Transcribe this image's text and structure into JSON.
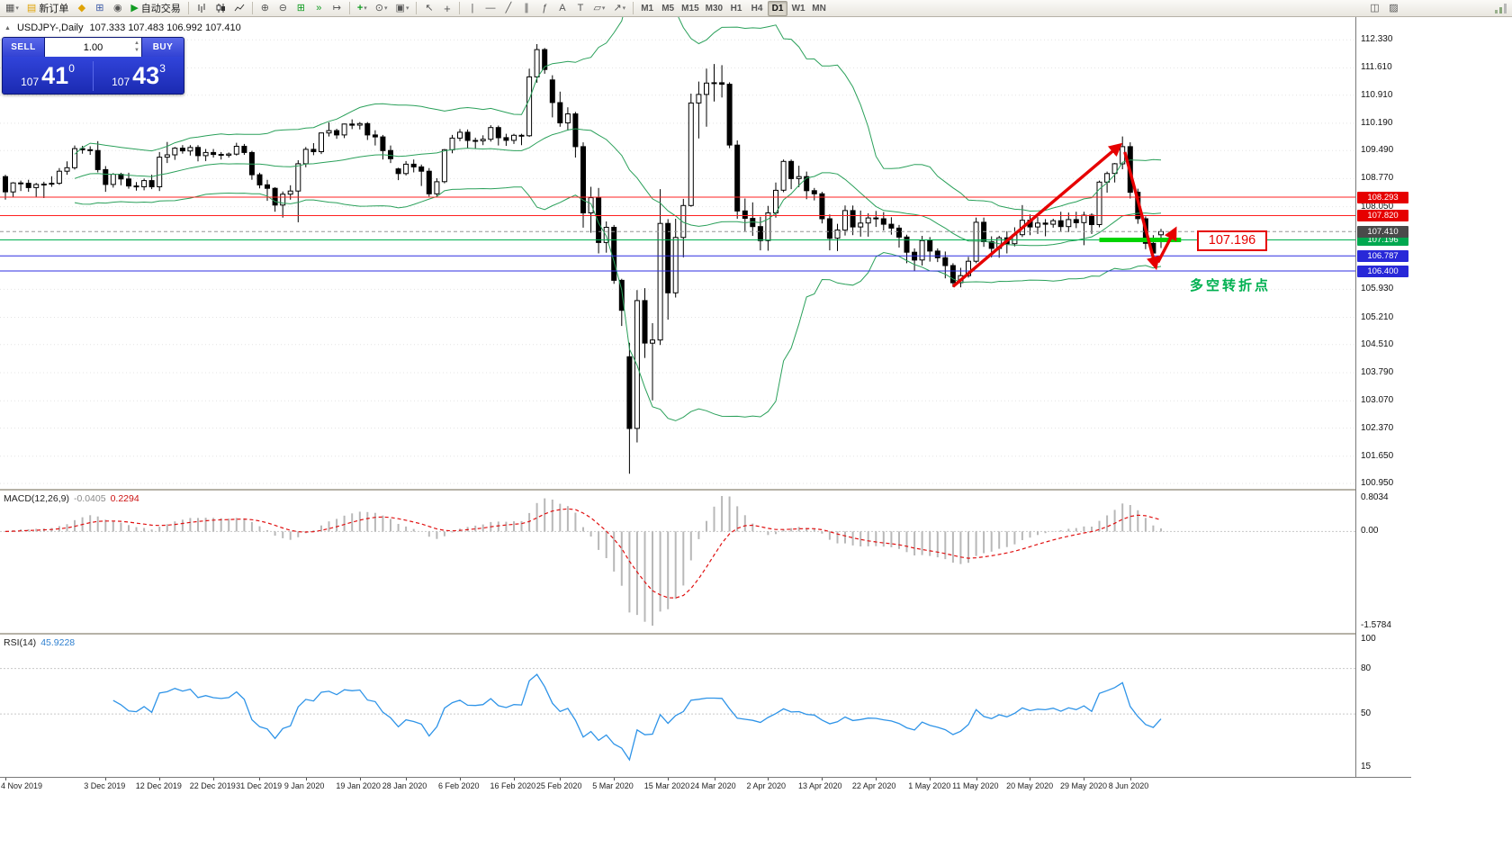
{
  "toolbar": {
    "new_order_label": "新订单",
    "auto_trading_label": "自动交易",
    "timeframes": [
      "M1",
      "M5",
      "M15",
      "M30",
      "H1",
      "H4",
      "D1",
      "W1",
      "MN"
    ],
    "active_timeframe": "D1"
  },
  "icons": {
    "new_chart": "▦",
    "dropdown": "▾",
    "order_form": "▤",
    "metaeditor": "◆",
    "charts_grid": "⊞",
    "alerts": "◉",
    "play": "▶",
    "zoom_in": "⊕",
    "zoom_out": "⊖",
    "tile_windows": "⊞",
    "auto_scroll": "»",
    "chart_shift": "↦",
    "indicators_plus": "+",
    "clock": "⊙",
    "template": "▣",
    "cursor": "↖",
    "crosshair": "+",
    "hline": "―",
    "vline": "|",
    "trendline": "╱",
    "channel": "∥",
    "fibonacci": "ƒ",
    "text_tool": "A",
    "label_tool": "T",
    "shapes": "▱",
    "arrow_tool": "↗",
    "window": "◫",
    "edit": "▨",
    "collapse": "▲"
  },
  "chart": {
    "title": "USDJPY-,Daily",
    "ohlc_display": "107.333 107.483 106.992 107.410"
  },
  "trade_panel": {
    "sell_label": "SELL",
    "buy_label": "BUY",
    "volume": "1.00",
    "sell_price_small": "107",
    "sell_price_big": "41",
    "sell_price_sup": "0",
    "buy_price_small": "107",
    "buy_price_big": "43",
    "buy_price_sup": "3"
  },
  "annotations": {
    "arrow_color": "#e60000",
    "arrows": [
      {
        "from_index": 123,
        "from_price": 106.0,
        "to_index": 144.6,
        "to_price": 109.62
      },
      {
        "from_index": 145.3,
        "from_price": 109.45,
        "to_index": 149.3,
        "to_price": 106.52
      },
      {
        "from_index": 149.6,
        "from_price": 106.62,
        "to_index": 151.8,
        "to_price": 107.45
      }
    ],
    "green_segment": {
      "price": 107.196,
      "from_index": 142,
      "to_index": 152.6,
      "color": "#00d400",
      "width": 5
    },
    "callout": {
      "text": "107.196",
      "price": 107.196
    },
    "turning_point": {
      "text": "多空转折点",
      "price": 106.08
    },
    "hlines": [
      {
        "price": 108.293,
        "label": "108.293",
        "color": "#ff2020",
        "box_color": "#e60000"
      },
      {
        "price": 107.82,
        "label": "107.820",
        "color": "#ff2020",
        "box_color": "#e60000"
      },
      {
        "price": 107.196,
        "label": "107.196",
        "color": "#00b050",
        "box_color": "#00a84f"
      },
      {
        "price": 106.787,
        "label": "106.787",
        "color": "#2e2ee0",
        "box_color": "#2828d8"
      },
      {
        "price": 106.4,
        "label": "106.400",
        "color": "#2e2ee0",
        "box_color": "#2828d8"
      }
    ],
    "current_price": {
      "price": 107.41,
      "label": "107.410",
      "box_color": "#4a4a4a"
    }
  },
  "chart_data": {
    "type": "candlestick",
    "title": "USDJPY Daily",
    "ylim": [
      100.95,
      112.91
    ],
    "colors": {
      "candle_up": "#ffffff",
      "candle_down": "#000000",
      "wick": "#000000",
      "bollinger": "#2aa05a",
      "macd_hist": "#b8b8b8",
      "macd_signal": "#e01010",
      "rsi_line": "#2f94e8"
    },
    "price_ticks": [
      "112.330",
      "111.610",
      "110.910",
      "110.190",
      "109.490",
      "108.770",
      "108.050",
      "105.930",
      "105.210",
      "104.510",
      "103.790",
      "103.070",
      "102.370",
      "101.650",
      "100.950"
    ],
    "date_ticks": [
      {
        "label": "4 Nov 2019",
        "index": 0
      },
      {
        "label": "3 Dec 2019",
        "index": 13
      },
      {
        "label": "12 Dec 2019",
        "index": 20
      },
      {
        "label": "22 Dec 2019",
        "index": 27
      },
      {
        "label": "31 Dec 2019",
        "index": 33
      },
      {
        "label": "9 Jan 2020",
        "index": 39
      },
      {
        "label": "19 Jan 2020",
        "index": 46
      },
      {
        "label": "28 Jan 2020",
        "index": 52
      },
      {
        "label": "6 Feb 2020",
        "index": 59
      },
      {
        "label": "16 Feb 2020",
        "index": 66
      },
      {
        "label": "25 Feb 2020",
        "index": 72
      },
      {
        "label": "5 Mar 2020",
        "index": 79
      },
      {
        "label": "15 Mar 2020",
        "index": 86
      },
      {
        "label": "24 Mar 2020",
        "index": 92
      },
      {
        "label": "2 Apr 2020",
        "index": 99
      },
      {
        "label": "13 Apr 2020",
        "index": 106
      },
      {
        "label": "22 Apr 2020",
        "index": 113
      },
      {
        "label": "1 May 2020",
        "index": 120
      },
      {
        "label": "11 May 2020",
        "index": 126
      },
      {
        "label": "20 May 2020",
        "index": 133
      },
      {
        "label": "29 May 2020",
        "index": 140
      },
      {
        "label": "8 Jun 2020",
        "index": 146
      }
    ],
    "indicators": {
      "bollinger": {
        "period": 20,
        "deviation": 2
      },
      "macd": {
        "name": "MACD(12,26,9)",
        "value_main": "-0.0405",
        "value_signal": "0.2294",
        "scale": [
          "0.8034",
          "0.00",
          "-1.5784"
        ]
      },
      "rsi": {
        "name": "RSI(14)",
        "value": "45.9228",
        "scale": [
          "100",
          "80",
          "50",
          "15"
        ],
        "levels": [
          80,
          50
        ]
      }
    },
    "candles": [
      [
        108.82,
        108.87,
        108.23,
        108.43
      ],
      [
        108.43,
        108.68,
        108.3,
        108.66
      ],
      [
        108.66,
        108.72,
        108.45,
        108.65
      ],
      [
        108.65,
        108.74,
        108.43,
        108.54
      ],
      [
        108.54,
        108.66,
        108.29,
        108.62
      ],
      [
        108.62,
        108.69,
        108.27,
        108.63
      ],
      [
        108.63,
        108.83,
        108.56,
        108.65
      ],
      [
        108.65,
        109.04,
        108.61,
        108.96
      ],
      [
        108.96,
        109.21,
        108.87,
        109.05
      ],
      [
        109.05,
        109.62,
        109.0,
        109.54
      ],
      [
        109.54,
        109.61,
        109.41,
        109.51
      ],
      [
        109.51,
        109.6,
        109.38,
        109.49
      ],
      [
        109.49,
        109.73,
        108.93,
        109.0
      ],
      [
        109.0,
        109.09,
        108.43,
        108.62
      ],
      [
        108.62,
        108.91,
        108.54,
        108.88
      ],
      [
        108.88,
        108.92,
        108.6,
        108.76
      ],
      [
        108.76,
        108.92,
        108.51,
        108.58
      ],
      [
        108.58,
        108.68,
        108.46,
        108.56
      ],
      [
        108.56,
        108.77,
        108.47,
        108.72
      ],
      [
        108.72,
        108.87,
        108.5,
        108.56
      ],
      [
        108.56,
        109.45,
        108.45,
        109.32
      ],
      [
        109.32,
        109.71,
        109.17,
        109.38
      ],
      [
        109.38,
        109.58,
        109.25,
        109.55
      ],
      [
        109.55,
        109.63,
        109.41,
        109.48
      ],
      [
        109.48,
        109.63,
        109.36,
        109.57
      ],
      [
        109.57,
        109.63,
        109.21,
        109.36
      ],
      [
        109.36,
        109.53,
        109.22,
        109.44
      ],
      [
        109.44,
        109.53,
        109.31,
        109.39
      ],
      [
        109.39,
        109.45,
        109.26,
        109.37
      ],
      [
        109.37,
        109.44,
        109.31,
        109.4
      ],
      [
        109.4,
        109.69,
        109.36,
        109.6
      ],
      [
        109.6,
        109.66,
        109.38,
        109.44
      ],
      [
        109.44,
        109.48,
        108.74,
        108.87
      ],
      [
        108.87,
        108.92,
        108.52,
        108.61
      ],
      [
        108.61,
        108.74,
        108.2,
        108.52
      ],
      [
        108.52,
        108.55,
        107.92,
        108.09
      ],
      [
        108.09,
        108.44,
        107.77,
        108.37
      ],
      [
        108.37,
        108.6,
        108.23,
        108.45
      ],
      [
        108.45,
        109.24,
        107.65,
        109.15
      ],
      [
        109.15,
        109.58,
        109.06,
        109.52
      ],
      [
        109.52,
        109.68,
        109.37,
        109.46
      ],
      [
        109.46,
        109.95,
        109.4,
        109.94
      ],
      [
        109.94,
        110.21,
        109.85,
        110.0
      ],
      [
        110.0,
        110.05,
        109.79,
        109.89
      ],
      [
        109.89,
        110.18,
        109.81,
        110.17
      ],
      [
        110.17,
        110.29,
        110.04,
        110.14
      ],
      [
        110.14,
        110.22,
        110.03,
        110.18
      ],
      [
        110.18,
        110.22,
        109.76,
        109.89
      ],
      [
        109.89,
        110.01,
        109.62,
        109.84
      ],
      [
        109.84,
        109.89,
        109.26,
        109.49
      ],
      [
        109.49,
        109.62,
        109.17,
        109.28
      ],
      [
        109.02,
        109.05,
        108.73,
        108.9
      ],
      [
        108.9,
        109.22,
        108.85,
        109.14
      ],
      [
        109.14,
        109.26,
        108.93,
        109.07
      ],
      [
        109.07,
        109.13,
        108.58,
        108.96
      ],
      [
        108.96,
        109.04,
        108.31,
        108.38
      ],
      [
        108.38,
        108.78,
        108.3,
        108.69
      ],
      [
        108.69,
        109.53,
        108.65,
        109.51
      ],
      [
        109.51,
        109.89,
        109.42,
        109.81
      ],
      [
        109.81,
        110.04,
        109.73,
        109.96
      ],
      [
        109.96,
        110.03,
        109.55,
        109.75
      ],
      [
        109.75,
        109.82,
        109.53,
        109.74
      ],
      [
        109.74,
        109.88,
        109.63,
        109.78
      ],
      [
        109.78,
        110.14,
        109.72,
        110.08
      ],
      [
        110.08,
        110.13,
        109.62,
        109.82
      ],
      [
        109.82,
        109.92,
        109.61,
        109.75
      ],
      [
        109.75,
        109.92,
        109.66,
        109.88
      ],
      [
        109.88,
        109.92,
        109.63,
        109.87
      ],
      [
        109.87,
        111.59,
        109.84,
        111.38
      ],
      [
        111.38,
        112.22,
        111.23,
        112.08
      ],
      [
        112.08,
        112.12,
        111.46,
        111.57
      ],
      [
        111.3,
        111.42,
        110.34,
        110.72
      ],
      [
        110.72,
        111.0,
        110.1,
        110.2
      ],
      [
        110.2,
        110.6,
        110.0,
        110.43
      ],
      [
        110.43,
        110.48,
        109.31,
        109.59
      ],
      [
        109.59,
        109.7,
        107.51,
        107.89
      ],
      [
        107.89,
        108.56,
        107.38,
        108.28
      ],
      [
        108.28,
        108.53,
        106.85,
        107.13
      ],
      [
        107.13,
        107.67,
        106.87,
        107.52
      ],
      [
        107.52,
        107.58,
        106.07,
        106.16
      ],
      [
        106.16,
        106.2,
        104.99,
        105.39
      ],
      [
        104.2,
        104.56,
        101.2,
        102.36
      ],
      [
        102.36,
        105.91,
        102.0,
        105.64
      ],
      [
        105.64,
        105.96,
        104.17,
        104.55
      ],
      [
        104.55,
        105.06,
        103.08,
        104.63
      ],
      [
        104.63,
        108.5,
        104.5,
        107.62
      ],
      [
        107.62,
        107.73,
        105.15,
        105.84
      ],
      [
        105.84,
        107.74,
        105.72,
        107.26
      ],
      [
        107.26,
        108.25,
        106.75,
        108.08
      ],
      [
        108.08,
        110.95,
        108.05,
        110.71
      ],
      [
        110.71,
        111.26,
        109.8,
        110.93
      ],
      [
        110.93,
        111.59,
        110.1,
        111.22
      ],
      [
        111.22,
        111.71,
        110.75,
        111.23
      ],
      [
        111.23,
        111.68,
        110.85,
        111.19
      ],
      [
        111.19,
        111.24,
        109.55,
        109.63
      ],
      [
        109.63,
        109.75,
        107.74,
        107.94
      ],
      [
        107.94,
        108.26,
        107.42,
        107.75
      ],
      [
        107.75,
        108.16,
        107.3,
        107.54
      ],
      [
        107.54,
        107.79,
        106.93,
        107.18
      ],
      [
        107.18,
        108.07,
        106.92,
        107.89
      ],
      [
        107.89,
        108.67,
        107.77,
        108.47
      ],
      [
        108.47,
        109.26,
        108.42,
        109.21
      ],
      [
        109.21,
        109.26,
        108.5,
        108.77
      ],
      [
        108.77,
        109.1,
        108.55,
        108.82
      ],
      [
        108.82,
        108.95,
        108.24,
        108.46
      ],
      [
        108.46,
        108.53,
        108.21,
        108.38
      ],
      [
        108.38,
        108.43,
        107.62,
        107.74
      ],
      [
        107.74,
        107.85,
        106.93,
        107.24
      ],
      [
        107.24,
        107.61,
        106.91,
        107.45
      ],
      [
        107.45,
        108.08,
        107.31,
        107.95
      ],
      [
        107.95,
        108.08,
        107.32,
        107.53
      ],
      [
        107.53,
        107.95,
        107.28,
        107.63
      ],
      [
        107.63,
        107.88,
        107.28,
        107.76
      ],
      [
        107.76,
        107.94,
        107.53,
        107.74
      ],
      [
        107.74,
        107.91,
        107.44,
        107.6
      ],
      [
        107.6,
        107.78,
        107.33,
        107.5
      ],
      [
        107.5,
        107.58,
        107.0,
        107.27
      ],
      [
        107.27,
        107.33,
        106.6,
        106.88
      ],
      [
        106.88,
        106.98,
        106.4,
        106.68
      ],
      [
        106.68,
        107.3,
        106.54,
        107.18
      ],
      [
        107.18,
        107.27,
        106.64,
        106.91
      ],
      [
        106.91,
        106.98,
        106.63,
        106.74
      ],
      [
        106.74,
        106.9,
        106.21,
        106.54
      ],
      [
        106.54,
        106.6,
        105.99,
        106.1
      ],
      [
        106.1,
        106.48,
        105.98,
        106.28
      ],
      [
        106.28,
        106.76,
        106.23,
        106.65
      ],
      [
        106.65,
        107.77,
        106.6,
        107.65
      ],
      [
        107.65,
        107.77,
        107.02,
        107.15
      ],
      [
        107.15,
        107.29,
        106.75,
        106.98
      ],
      [
        106.98,
        107.3,
        106.74,
        107.25
      ],
      [
        107.25,
        107.42,
        106.85,
        107.1
      ],
      [
        107.1,
        107.52,
        107.03,
        107.33
      ],
      [
        107.33,
        108.09,
        107.27,
        107.7
      ],
      [
        107.7,
        107.85,
        107.32,
        107.53
      ],
      [
        107.53,
        107.78,
        107.35,
        107.63
      ],
      [
        107.63,
        107.73,
        107.29,
        107.6
      ],
      [
        107.6,
        107.74,
        107.51,
        107.69
      ],
      [
        107.69,
        107.92,
        107.42,
        107.54
      ],
      [
        107.54,
        107.9,
        107.4,
        107.72
      ],
      [
        107.72,
        107.92,
        107.5,
        107.64
      ],
      [
        107.64,
        107.92,
        107.06,
        107.83
      ],
      [
        107.83,
        107.88,
        107.35,
        107.59
      ],
      [
        107.59,
        108.72,
        107.52,
        108.68
      ],
      [
        108.68,
        108.95,
        108.41,
        108.9
      ],
      [
        108.9,
        109.17,
        108.67,
        109.15
      ],
      [
        109.15,
        109.85,
        109.01,
        109.59
      ],
      [
        109.59,
        109.7,
        108.26,
        108.42
      ],
      [
        108.42,
        108.51,
        107.61,
        107.74
      ],
      [
        107.74,
        107.8,
        106.96,
        107.11
      ],
      [
        107.11,
        107.32,
        106.57,
        106.86
      ],
      [
        107.33,
        107.48,
        106.99,
        107.41
      ]
    ]
  }
}
